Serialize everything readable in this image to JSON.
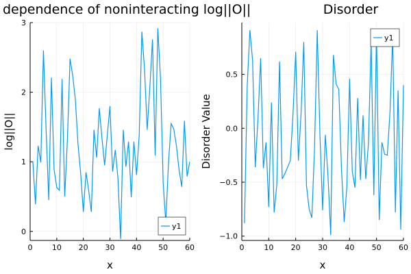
{
  "chart_data": [
    {
      "type": "line",
      "title": "dependence of noninteracting log||O||",
      "xlabel": "x",
      "ylabel": "log||O||",
      "xlim": [
        0,
        60
      ],
      "ylim": [
        -0.13,
        3.0
      ],
      "xticks": [
        0,
        10,
        20,
        30,
        40,
        50,
        60
      ],
      "yticks": [
        0,
        1,
        2,
        3
      ],
      "grid": true,
      "legend": "bottom-right",
      "series": [
        {
          "name": "y1",
          "color": "#009AFA",
          "x": [
            1,
            2,
            3,
            4,
            5,
            6,
            7,
            8,
            9,
            10,
            11,
            12,
            13,
            14,
            15,
            16,
            17,
            18,
            19,
            20,
            21,
            22,
            23,
            24,
            25,
            26,
            27,
            28,
            29,
            30,
            31,
            32,
            33,
            34,
            35,
            36,
            37,
            38,
            39,
            40,
            41,
            42,
            43,
            44,
            45,
            46,
            47,
            48,
            49,
            50,
            51,
            52,
            53,
            54,
            55,
            56,
            57,
            58,
            59,
            60
          ],
          "values": [
            1.01,
            0.39,
            1.23,
            0.99,
            2.6,
            1.46,
            0.45,
            2.21,
            0.89,
            0.63,
            0.59,
            2.19,
            0.5,
            1.31,
            2.48,
            2.24,
            1.89,
            1.25,
            0.83,
            0.28,
            0.85,
            0.59,
            0.28,
            1.46,
            1.06,
            1.77,
            1.34,
            0.95,
            1.38,
            1.8,
            0.86,
            1.17,
            0.77,
            -0.11,
            1.46,
            0.93,
            1.29,
            0.49,
            1.29,
            0.81,
            1.38,
            2.87,
            2.33,
            1.46,
            2.07,
            2.76,
            1.09,
            2.92,
            2.2,
            0.71,
            0.12,
            0.98,
            1.55,
            1.47,
            1.23,
            0.88,
            0.64,
            1.59,
            0.79,
            1.0
          ]
        }
      ]
    },
    {
      "type": "line",
      "title": "Disorder",
      "xlabel": "x",
      "ylabel": "Disorder Value",
      "xlim": [
        0,
        60
      ],
      "ylim": [
        -1.04,
        0.98
      ],
      "xticks": [
        0,
        10,
        20,
        30,
        40,
        50,
        60
      ],
      "yticks": [
        -1.0,
        -0.5,
        0.0,
        0.5
      ],
      "ytick_labels": [
        "−1.0",
        "−0.5",
        "0.0",
        "0.5"
      ],
      "grid": true,
      "legend": "top-right",
      "series": [
        {
          "name": "y1",
          "color": "#009AFA",
          "x": [
            1,
            2,
            3,
            4,
            5,
            6,
            7,
            8,
            9,
            10,
            11,
            12,
            13,
            14,
            15,
            16,
            17,
            18,
            19,
            20,
            21,
            22,
            23,
            24,
            25,
            26,
            27,
            28,
            29,
            30,
            31,
            32,
            33,
            34,
            35,
            36,
            37,
            38,
            39,
            40,
            41,
            42,
            43,
            44,
            45,
            46,
            47,
            48,
            49,
            50,
            51,
            52,
            53,
            54,
            55,
            56,
            57,
            58,
            59,
            60
          ],
          "values": [
            -0.88,
            0.39,
            0.91,
            0.63,
            -0.36,
            0.09,
            0.65,
            -0.37,
            -0.13,
            -0.73,
            0.24,
            -0.78,
            -0.52,
            0.62,
            -0.47,
            -0.42,
            -0.36,
            -0.3,
            0.13,
            0.71,
            -0.3,
            0.14,
            0.8,
            -0.53,
            -0.75,
            -0.83,
            -0.18,
            0.91,
            -0.06,
            -0.76,
            -0.06,
            -0.45,
            -0.99,
            0.68,
            0.41,
            0.36,
            -0.38,
            -0.87,
            -0.54,
            0.46,
            -0.4,
            -0.55,
            0.28,
            -0.48,
            0.12,
            -0.47,
            -0.14,
            0.81,
            -0.62,
            0.9,
            -0.85,
            -0.13,
            -0.24,
            -0.25,
            0.15,
            0.86,
            -0.78,
            0.35,
            -0.94,
            0.4
          ]
        }
      ]
    }
  ]
}
